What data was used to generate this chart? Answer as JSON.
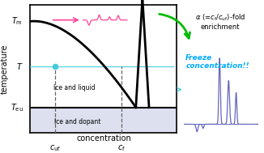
{
  "bg_color": "#ffffff",
  "phase": {
    "T_m": 0.87,
    "T_eu": 0.2,
    "T_level": 0.52,
    "c_uf": 0.17,
    "c_f": 0.62,
    "c_eu": 0.72
  },
  "colors": {
    "liquidus": "#000000",
    "T_line": "#44ccdd",
    "pink": "#ff4499",
    "green": "#00bb00",
    "dopant_fill": "#dde0ee",
    "ce_color": "#6666bb",
    "freeze_text": "#00aaff",
    "black": "#000000"
  },
  "labels": {
    "xlabel": "concentration",
    "ylabel": "temperature",
    "T_m": "$T_\\mathrm{m}$",
    "T_eu": "$T_\\mathrm{eu}$",
    "T": "$T$",
    "c_uf": "$c_{\\mathrm{uf}}$",
    "c_f": "$c_\\mathrm{f}$",
    "ice_liquid": "Ice and liquid",
    "ice_dopant": "Ice and dopant"
  }
}
